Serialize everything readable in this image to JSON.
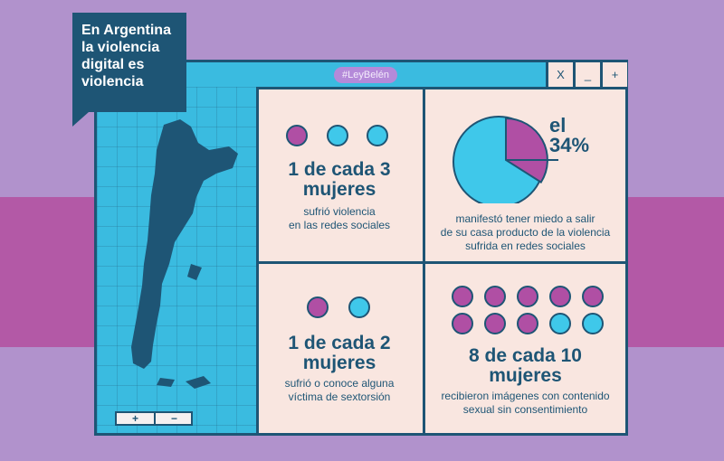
{
  "headline": {
    "line1": "En Argentina",
    "line2": "la violencia",
    "line3": "digital es",
    "line4": "violencia"
  },
  "window": {
    "tag": "#LeyBelén",
    "close_label": "X",
    "minimize_label": "_",
    "maximize_label": "+"
  },
  "map": {
    "zoom_in": "+",
    "zoom_out": "−"
  },
  "stat1": {
    "title1": "1 de cada 3",
    "title2": "mujeres",
    "desc1": "sufrió violencia",
    "desc2": "en las redes sociales",
    "dots": [
      "magenta",
      "cyan",
      "cyan"
    ]
  },
  "stat2": {
    "pct_line1": "el",
    "pct_line2": "34%",
    "pie_value": 0.34,
    "desc1": "manifestó tener miedo a salir",
    "desc2": "de su casa producto de la violencia",
    "desc3": "sufrida en redes sociales"
  },
  "stat3": {
    "title1": "1 de cada 2",
    "title2": "mujeres",
    "desc1": "sufrió o conoce alguna",
    "desc2": "víctima de sextorsión",
    "dots": [
      "magenta",
      "cyan"
    ]
  },
  "stat4": {
    "title1": "8 de cada 10",
    "title2": "mujeres",
    "desc1": "recibieron imágenes con contenido",
    "desc2": "sexual sin consentimiento",
    "dots": [
      "magenta",
      "magenta",
      "magenta",
      "magenta",
      "magenta",
      "magenta",
      "magenta",
      "magenta",
      "cyan",
      "cyan"
    ]
  },
  "colors": {
    "background": "#b192cc",
    "band": "#b359a6",
    "navy": "#1e5575",
    "cyan": "#3fc8ea",
    "magenta": "#b04fa4",
    "panel": "#f9e6e0"
  }
}
